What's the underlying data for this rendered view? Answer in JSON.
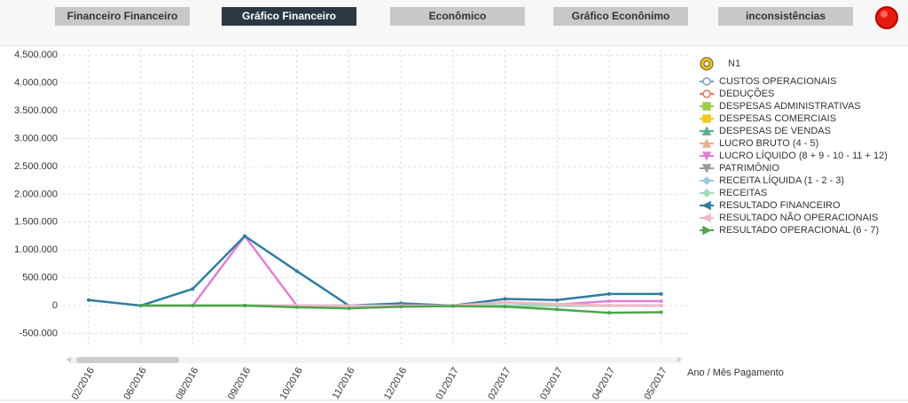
{
  "nav": {
    "buttons": [
      "Financeiro Financeiro",
      "Gráfico Financeiro",
      "Econômico",
      "Gráfico Econônimo",
      "inconsistências"
    ],
    "active": 1
  },
  "chart_data": {
    "type": "line",
    "legend_title": "N1",
    "x_label": "Ano / Mês Pagamento",
    "categories": [
      "02/2016",
      "06/2016",
      "08/2016",
      "09/2016",
      "10/2016",
      "11/2016",
      "12/2016",
      "01/2017",
      "02/2017",
      "03/2017",
      "04/2017",
      "05/2017"
    ],
    "ylim": [
      -700000,
      4600000
    ],
    "yticks": [
      {
        "value": -500000,
        "label": "-500.000"
      },
      0,
      {
        "value": 500000,
        "label": "500.000"
      },
      {
        "value": 1000000,
        "label": "1.000.000"
      },
      {
        "value": 1500000,
        "label": "1.500.000"
      },
      {
        "value": 2000000,
        "label": "2.000.000"
      },
      {
        "value": 2500000,
        "label": "2.500.000"
      },
      {
        "value": 3000000,
        "label": "3.000.000"
      },
      {
        "value": 3500000,
        "label": "3.500.000"
      },
      {
        "value": 4000000,
        "label": "4.000.000"
      },
      {
        "value": 4500000,
        "label": "4.500.000"
      }
    ],
    "grid": true,
    "legend": "right",
    "series": [
      {
        "name": "CUSTOS OPERACIONAIS",
        "color": "#7f9fbf",
        "marker": "circle",
        "values": [
          null,
          0,
          0,
          0,
          0,
          0,
          0,
          0,
          0,
          0,
          0,
          0
        ]
      },
      {
        "name": "DEDUÇÕES",
        "color": "#e8735a",
        "marker": "circle",
        "values": [
          null,
          0,
          0,
          0,
          0,
          0,
          0,
          0,
          0,
          0,
          0,
          0
        ]
      },
      {
        "name": "DESPESAS ADMINISTRATIVAS",
        "color": "#9ccc4a",
        "marker": "square",
        "values": [
          null,
          0,
          0,
          0,
          0,
          0,
          0,
          0,
          0,
          0,
          0,
          0
        ]
      },
      {
        "name": "DESPESAS COMERCIAIS",
        "color": "#f2c81f",
        "marker": "square",
        "values": [
          null,
          0,
          0,
          0,
          0,
          0,
          0,
          0,
          0,
          0,
          0,
          0
        ]
      },
      {
        "name": "DESPESAS DE VENDAS",
        "color": "#5aab8f",
        "marker": "triangle",
        "values": [
          null,
          0,
          0,
          0,
          0,
          0,
          0,
          0,
          0,
          0,
          0,
          0
        ]
      },
      {
        "name": "LUCRO BRUTO (4 - 5)",
        "color": "#e8b090",
        "marker": "triangle",
        "values": [
          null,
          0,
          0,
          0,
          0,
          0,
          0,
          0,
          0,
          0,
          0,
          0
        ]
      },
      {
        "name": "LUCRO LÍQUIDO (8 + 9 - 10 - 11 + 12)",
        "color": "#e27fd6",
        "marker": "down",
        "values": [
          null,
          0,
          0,
          1250000,
          0,
          0,
          0,
          0,
          60000,
          20000,
          80000,
          80000
        ]
      },
      {
        "name": "PATRIMÔNIO",
        "color": "#999999",
        "marker": "down",
        "values": [
          null,
          0,
          0,
          0,
          0,
          0,
          0,
          0,
          0,
          0,
          0,
          0
        ]
      },
      {
        "name": "RECEITA LÍQUIDA (1 - 2 - 3)",
        "color": "#9cc9e0",
        "marker": "diamond",
        "values": [
          null,
          0,
          0,
          0,
          0,
          0,
          0,
          0,
          0,
          0,
          0,
          0
        ]
      },
      {
        "name": "RECEITAS",
        "color": "#9fdcb8",
        "marker": "diamond",
        "values": [
          null,
          0,
          0,
          0,
          0,
          0,
          0,
          0,
          0,
          0,
          0,
          0
        ]
      },
      {
        "name": "RESULTADO FINANCEIRO",
        "color": "#2d7ea0",
        "marker": "left",
        "values": [
          100000,
          0,
          300000,
          1250000,
          620000,
          0,
          40000,
          0,
          120000,
          100000,
          210000,
          210000
        ]
      },
      {
        "name": "RESULTADO NÃO OPERACIONAIS",
        "color": "#f4b6c6",
        "marker": "left",
        "values": [
          null,
          0,
          0,
          0,
          0,
          0,
          0,
          0,
          60000,
          30000,
          0,
          0
        ]
      },
      {
        "name": "RESULTADO OPERACIONAL (6 - 7)",
        "color": "#4aa64a",
        "marker": "right",
        "values": [
          null,
          0,
          0,
          0,
          -30000,
          -50000,
          -20000,
          -10000,
          -20000,
          -70000,
          -130000,
          -120000
        ]
      }
    ]
  }
}
